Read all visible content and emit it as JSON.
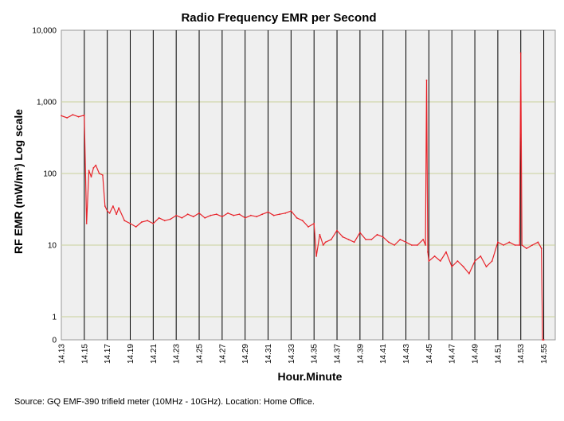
{
  "chart_data": {
    "type": "line",
    "title": "Radio Frequency EMR per Second",
    "xlabel": "Hour.Minute",
    "ylabel": "RF EMR (mW/m²) Log scale",
    "yscale": "log",
    "ylim": [
      0,
      10000
    ],
    "y_ticks": [
      {
        "value": 0,
        "label": "0"
      },
      {
        "value": 1,
        "label": "1"
      },
      {
        "value": 10,
        "label": "10"
      },
      {
        "value": 100,
        "label": "100"
      },
      {
        "value": 1000,
        "label": "1,000"
      },
      {
        "value": 10000,
        "label": "10,000"
      }
    ],
    "x_range": [
      14.13,
      14.56
    ],
    "x_ticks": [
      "14.13",
      "14.15",
      "14.17",
      "14.19",
      "14.21",
      "14.23",
      "14.25",
      "14.27",
      "14.29",
      "14.31",
      "14.33",
      "14.35",
      "14.37",
      "14.39",
      "14.41",
      "14.43",
      "14.45",
      "14.47",
      "14.49",
      "14.51",
      "14.53",
      "14.55"
    ],
    "series": [
      {
        "name": "RF EMR",
        "color": "#e8242b",
        "x": [
          14.13,
          14.135,
          14.14,
          14.145,
          14.15,
          14.152,
          14.154,
          14.156,
          14.158,
          14.16,
          14.163,
          14.166,
          14.168,
          14.17,
          14.172,
          14.175,
          14.178,
          14.18,
          14.185,
          14.19,
          14.195,
          14.2,
          14.205,
          14.21,
          14.215,
          14.22,
          14.225,
          14.23,
          14.235,
          14.24,
          14.245,
          14.25,
          14.255,
          14.26,
          14.265,
          14.27,
          14.275,
          14.28,
          14.285,
          14.29,
          14.295,
          14.3,
          14.305,
          14.31,
          14.315,
          14.32,
          14.325,
          14.33,
          14.335,
          14.34,
          14.345,
          14.35,
          14.352,
          14.355,
          14.358,
          14.36,
          14.365,
          14.37,
          14.375,
          14.38,
          14.385,
          14.39,
          14.395,
          14.4,
          14.405,
          14.41,
          14.415,
          14.42,
          14.425,
          14.43,
          14.435,
          14.44,
          14.445,
          14.447,
          14.448,
          14.449,
          14.45,
          14.455,
          14.46,
          14.465,
          14.47,
          14.475,
          14.48,
          14.485,
          14.49,
          14.495,
          14.5,
          14.505,
          14.51,
          14.515,
          14.52,
          14.525,
          14.529,
          14.53,
          14.531,
          14.535,
          14.54,
          14.545,
          14.548,
          14.549,
          14.55
        ],
        "y": [
          640,
          600,
          660,
          620,
          650,
          20,
          110,
          90,
          120,
          130,
          100,
          95,
          35,
          30,
          28,
          35,
          27,
          33,
          22,
          20,
          18,
          21,
          22,
          20,
          24,
          22,
          23,
          26,
          24,
          27,
          25,
          28,
          24,
          26,
          27,
          25,
          28,
          26,
          27,
          24,
          26,
          25,
          27,
          29,
          26,
          27,
          28,
          30,
          24,
          22,
          18,
          20,
          7,
          14,
          10,
          11,
          12,
          16,
          13,
          12,
          11,
          15,
          12,
          12,
          14,
          13,
          11,
          10,
          12,
          11,
          10,
          10,
          12,
          10,
          2000,
          8,
          6,
          7,
          6,
          8,
          5,
          6,
          5,
          4,
          6,
          7,
          5,
          6,
          11,
          10,
          11,
          10,
          10,
          4800,
          10,
          9,
          10,
          11,
          9,
          0,
          0
        ]
      }
    ]
  },
  "source_note": "Source: GQ EMF-390 trifield meter (10MHz - 10GHz). Location: Home Office."
}
